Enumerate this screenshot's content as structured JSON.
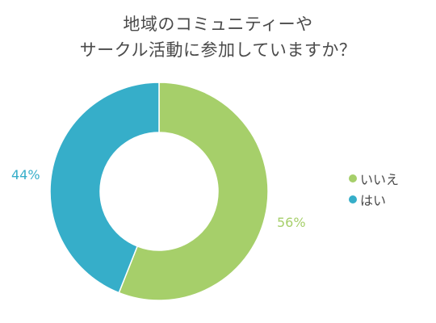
{
  "chart_data": {
    "type": "pie",
    "style": "donut",
    "title": [
      "地域のコミュニティーや",
      "サークル活動に参加していますか？"
    ],
    "categories": [
      "いいえ",
      "はい"
    ],
    "values": [
      56,
      44
    ],
    "data_labels": [
      "56%",
      "44%"
    ],
    "colors": [
      "#a6cf6a",
      "#36aec9"
    ],
    "legend_position": "right"
  }
}
